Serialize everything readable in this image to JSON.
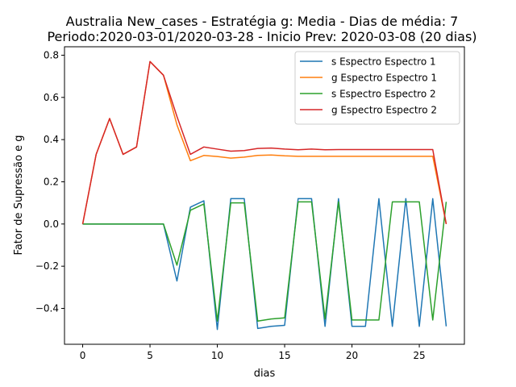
{
  "chart_data": {
    "type": "line",
    "title_line1": "Australia New_cases - Estratégia g: Media - Dias de média: 7",
    "title_line2": "Periodo:2020-03-01/2020-03-28 - Inicio Prev: 2020-03-08 (20 dias)",
    "xlabel": "dias",
    "ylabel": "Fator de Supressão e g",
    "xlim": [
      -1.35,
      28.35
    ],
    "ylim": [
      -0.57,
      0.84
    ],
    "xticks": [
      0,
      5,
      10,
      15,
      20,
      25
    ],
    "xtick_labels": [
      "0",
      "5",
      "10",
      "15",
      "20",
      "25"
    ],
    "yticks": [
      -0.4,
      -0.2,
      0.0,
      0.2,
      0.4,
      0.6,
      0.8
    ],
    "ytick_labels": [
      "−0.4",
      "−0.2",
      "0.0",
      "0.2",
      "0.4",
      "0.6",
      "0.8"
    ],
    "grid": false,
    "legend_position": "top-right",
    "x": [
      0,
      1,
      2,
      3,
      4,
      5,
      6,
      7,
      8,
      9,
      10,
      11,
      12,
      13,
      14,
      15,
      16,
      17,
      18,
      19,
      20,
      21,
      22,
      23,
      24,
      25,
      26,
      27
    ],
    "series": [
      {
        "name": "s Espectro Espectro 1",
        "color": "#1f77b4",
        "values": [
          0,
          0,
          0,
          0,
          0,
          0,
          0,
          -0.27,
          0.08,
          0.11,
          -0.5,
          0.12,
          0.12,
          -0.495,
          -0.485,
          -0.48,
          0.12,
          0.12,
          -0.485,
          0.12,
          -0.485,
          -0.485,
          0.12,
          -0.485,
          0.12,
          -0.485,
          0.12,
          -0.485
        ]
      },
      {
        "name": "g Espectro Espectro 1",
        "color": "#ff7f0e",
        "values": [
          0,
          0.33,
          0.5,
          0.33,
          0.365,
          0.77,
          0.705,
          0.47,
          0.3,
          0.325,
          0.32,
          0.312,
          0.317,
          0.325,
          0.327,
          0.323,
          0.321,
          0.321,
          0.321,
          0.321,
          0.321,
          0.321,
          0.321,
          0.321,
          0.321,
          0.321,
          0.321,
          0.0
        ]
      },
      {
        "name": "s Espectro Espectro 2",
        "color": "#2ca02c",
        "values": [
          0,
          0,
          0,
          0,
          0,
          0,
          0,
          -0.195,
          0.065,
          0.095,
          -0.46,
          0.1,
          0.1,
          -0.46,
          -0.45,
          -0.445,
          0.105,
          0.105,
          -0.45,
          0.105,
          -0.455,
          -0.455,
          -0.455,
          0.105,
          0.105,
          0.105,
          -0.455,
          0.105
        ]
      },
      {
        "name": "g Espectro Espectro 2",
        "color": "#d62728",
        "values": [
          0,
          0.33,
          0.5,
          0.33,
          0.365,
          0.77,
          0.705,
          0.51,
          0.33,
          0.365,
          0.355,
          0.345,
          0.348,
          0.358,
          0.36,
          0.355,
          0.352,
          0.355,
          0.352,
          0.353,
          0.353,
          0.353,
          0.353,
          0.353,
          0.353,
          0.353,
          0.353,
          0.0
        ]
      }
    ]
  }
}
